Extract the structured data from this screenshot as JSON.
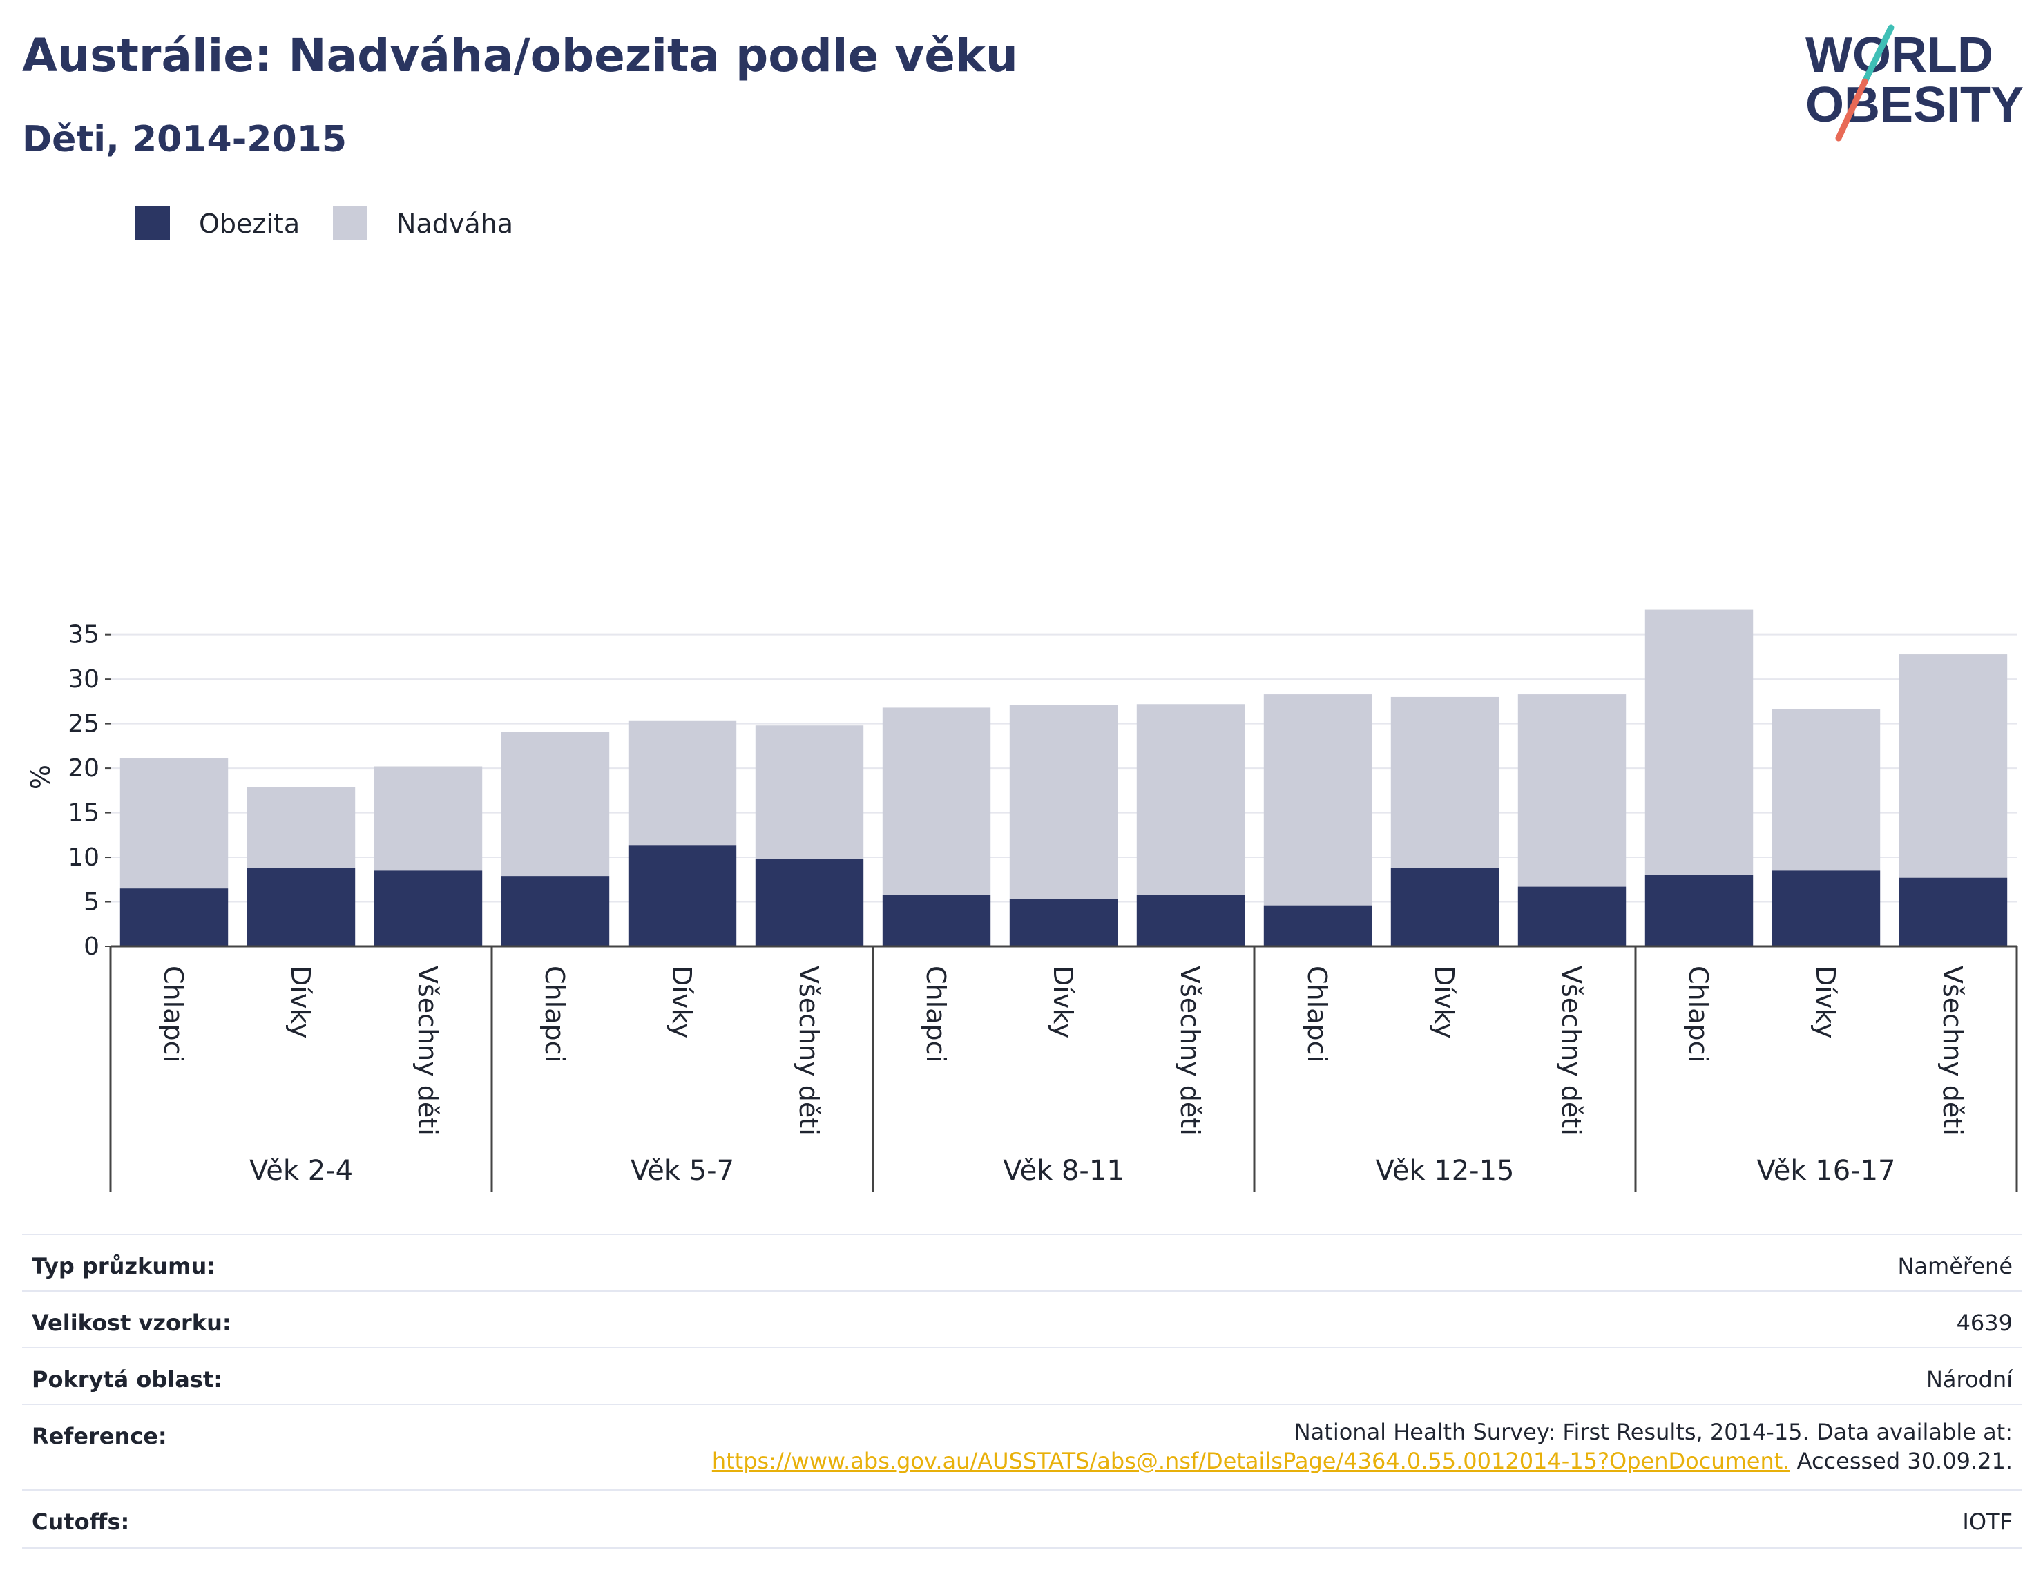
{
  "header": {
    "title": "Austrálie: Nadváha/obezita podle věku",
    "subtitle": "Děti, 2014-2015"
  },
  "logo": {
    "line1": "WORLD",
    "line2": "OBESITY",
    "colors": {
      "text": "#2a3560",
      "slash_top": "#3fbfb6",
      "slash_bottom": "#e86a56"
    }
  },
  "legend": [
    {
      "label": "Obezita",
      "color": "#2b3663"
    },
    {
      "label": "Nadváha",
      "color": "#cbcdd9"
    }
  ],
  "chart_data": {
    "type": "bar",
    "stacked": true,
    "ylabel": "%",
    "ylim": [
      0,
      38
    ],
    "yticks": [
      0,
      5,
      10,
      15,
      20,
      25,
      30,
      35
    ],
    "grid": true,
    "legend_position": "top-left",
    "groups": [
      {
        "label": "Věk 2-4",
        "categories": [
          "Chlapci",
          "Dívky",
          "Všechny děti"
        ]
      },
      {
        "label": "Věk 5-7",
        "categories": [
          "Chlapci",
          "Dívky",
          "Všechny děti"
        ]
      },
      {
        "label": "Věk 8-11",
        "categories": [
          "Chlapci",
          "Dívky",
          "Všechny děti"
        ]
      },
      {
        "label": "Věk 12-15",
        "categories": [
          "Chlapci",
          "Dívky",
          "Všechny děti"
        ]
      },
      {
        "label": "Věk 16-17",
        "categories": [
          "Chlapci",
          "Dívky",
          "Všechny děti"
        ]
      }
    ],
    "series": [
      {
        "name": "Obezita",
        "color": "#2b3663",
        "values": [
          6.5,
          8.8,
          8.5,
          7.9,
          11.3,
          9.8,
          5.8,
          5.3,
          5.8,
          4.6,
          8.8,
          6.7,
          8.0,
          8.5,
          7.7
        ]
      },
      {
        "name": "Nadváha",
        "color": "#cbcdd9",
        "values": [
          14.6,
          9.1,
          11.7,
          16.2,
          14.0,
          15.0,
          21.0,
          21.8,
          21.4,
          23.7,
          19.2,
          21.6,
          29.8,
          18.1,
          25.1
        ]
      }
    ]
  },
  "info": {
    "survey_type": {
      "label": "Typ průzkumu:",
      "value": "Naměřené"
    },
    "sample_size": {
      "label": "Velikost vzorku:",
      "value": "4639"
    },
    "area": {
      "label": "Pokrytá oblast:",
      "value": "Národní"
    },
    "reference": {
      "label": "Reference:",
      "line1": "National Health Survey: First Results, 2014-15. Data available at:",
      "link": "https://www.abs.gov.au/AUSSTATS/abs@.nsf/DetailsPage/4364.0.55.0012014-15?OpenDocument.",
      "accessed": " Accessed 30.09.21."
    },
    "cutoffs": {
      "label": "Cutoffs:",
      "value": "IOTF"
    }
  }
}
